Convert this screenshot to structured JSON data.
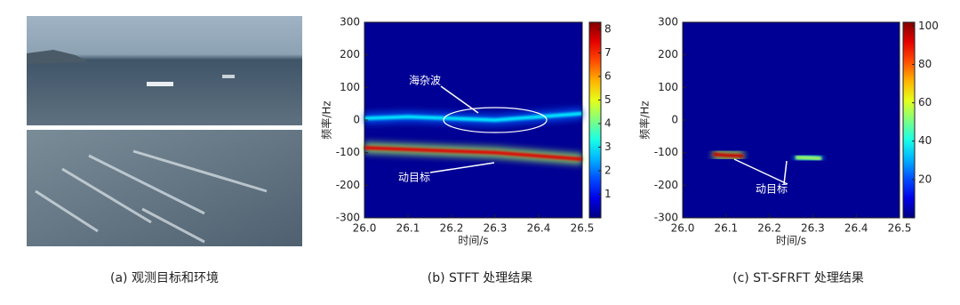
{
  "figure": {
    "captions": [
      "(a) 观测目标和环境",
      "(b) STFT 处理结果",
      "(c) ST-SFRFT 处理结果"
    ]
  },
  "chart_data": [
    {
      "type": "heatmap",
      "xlabel": "时间/s",
      "ylabel": "频率/Hz",
      "xlim": [
        26.0,
        26.5
      ],
      "xticks": [
        {
          "value": 26,
          "label": "26.0"
        },
        26.1,
        26.2,
        26.3,
        26.4,
        26.5
      ],
      "ylim": [
        -300,
        300
      ],
      "yticks": [
        -300,
        -200,
        -100,
        0,
        100,
        200,
        300
      ],
      "clim": [
        0,
        8.3
      ],
      "cticks": [
        1,
        2,
        3,
        4,
        5,
        6,
        7,
        8
      ],
      "colormap": "jet",
      "series": [
        {
          "name": "海杂波",
          "x": [
            26.0,
            26.1,
            26.2,
            26.3,
            26.4,
            26.5
          ],
          "values": [
            5,
            10,
            5,
            0,
            10,
            20
          ],
          "intensity": 3
        },
        {
          "name": "动目标",
          "x": [
            26.0,
            26.1,
            26.2,
            26.3,
            26.4,
            26.5
          ],
          "values": [
            -85,
            -90,
            -95,
            -100,
            -110,
            -120
          ],
          "intensity": 7.5
        }
      ]
    },
    {
      "type": "heatmap",
      "xlabel": "时间/s",
      "ylabel": "频率/Hz",
      "xlim": [
        26.0,
        26.5
      ],
      "xticks": [
        {
          "value": 26,
          "label": "26.0"
        },
        26.1,
        26.2,
        26.3,
        26.4,
        26.5
      ],
      "ylim": [
        -300,
        300
      ],
      "yticks": [
        -300,
        -200,
        -100,
        0,
        100,
        200,
        300
      ],
      "clim": [
        0,
        102
      ],
      "cticks": [
        20,
        40,
        60,
        80,
        100
      ],
      "colormap": "jet",
      "series": [
        {
          "name": "动目标",
          "x": [
            26.07,
            26.1,
            26.14
          ],
          "values": [
            -105,
            -108,
            -110
          ],
          "intensity": 95
        },
        {
          "x": [
            26.26,
            26.29,
            26.32
          ],
          "values": [
            -115,
            -116,
            -118
          ],
          "intensity": 55
        }
      ]
    }
  ]
}
